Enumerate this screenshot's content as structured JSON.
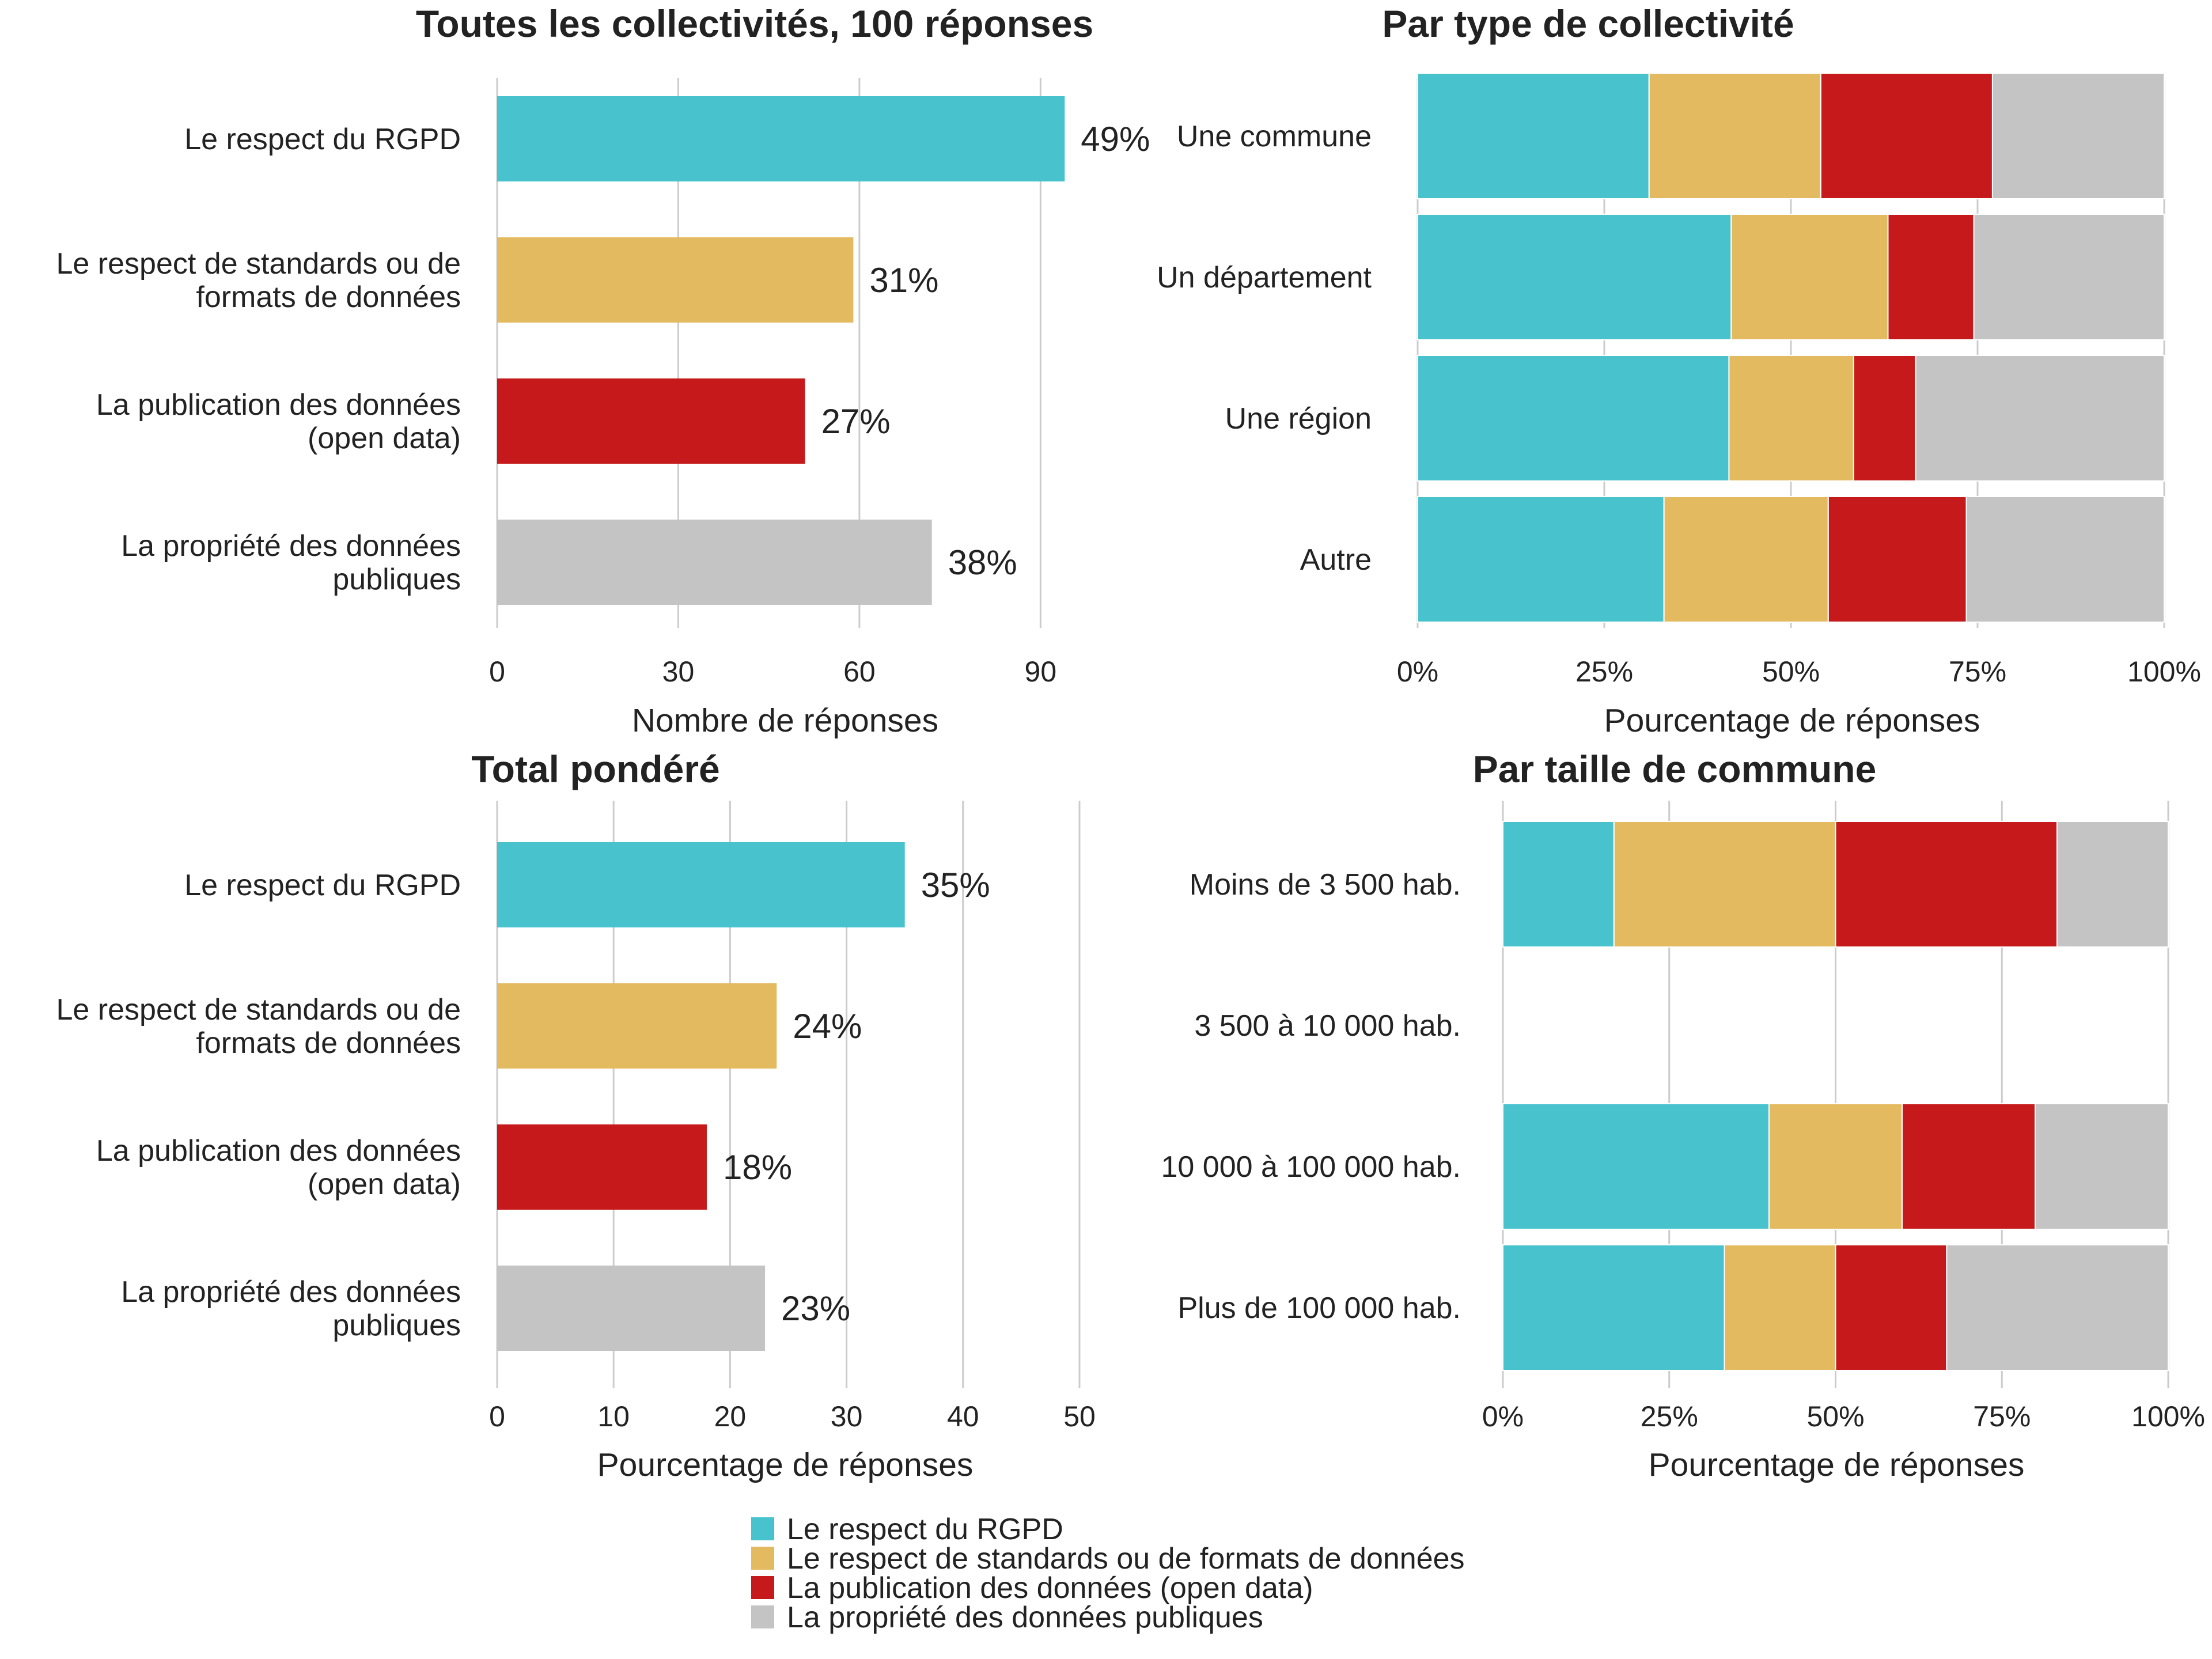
{
  "colors": {
    "rgpd": "#48C3CE",
    "standards": "#E3BA5F",
    "opendata": "#C5191B",
    "propriete": "#C4C4C4",
    "grid": "#CCCCCC"
  },
  "legend": [
    {
      "label": "Le respect du RGPD",
      "color": "#48C3CE"
    },
    {
      "label": "Le respect de standards ou de formats de données",
      "color": "#E3BA5F"
    },
    {
      "label": "La publication des données (open data)",
      "color": "#C5191B"
    },
    {
      "label": "La propriété des données publiques",
      "color": "#C4C4C4"
    }
  ],
  "chart_data": [
    {
      "type": "bar",
      "orientation": "horizontal",
      "title": "Toutes les collectivités, 100 réponses",
      "xlabel": "Nombre de réponses",
      "categories": [
        [
          "Le respect du RGPD"
        ],
        [
          "Le respect de standards ou de",
          "formats de données"
        ],
        [
          "La publication des données",
          "(open data)"
        ],
        [
          "La propriété des données",
          "publiques"
        ]
      ],
      "values": [
        94,
        59,
        51,
        72
      ],
      "value_labels": [
        "49%",
        "31%",
        "27%",
        "38%"
      ],
      "colors": [
        "#48C3CE",
        "#E3BA5F",
        "#C5191B",
        "#C4C4C4"
      ],
      "xlim": [
        0,
        110
      ],
      "xticks": [
        0,
        30,
        60,
        90
      ],
      "xtick_labels": [
        "0",
        "30",
        "60",
        "90"
      ],
      "grid": true
    },
    {
      "type": "bar",
      "orientation": "horizontal",
      "stacked": true,
      "title": "Par type de collectivité",
      "xlabel": "Pourcentage de réponses",
      "categories": [
        "Une commune",
        "Un département",
        "Une région",
        "Autre"
      ],
      "series": [
        {
          "name": "Le respect du RGPD",
          "color": "#48C3CE",
          "values": [
            31,
            42,
            41.7,
            33
          ]
        },
        {
          "name": "Le respect de standards ou de formats de données",
          "color": "#E3BA5F",
          "values": [
            23,
            21,
            16.7,
            22
          ]
        },
        {
          "name": "La publication des données (open data)",
          "color": "#C5191B",
          "values": [
            23,
            11.5,
            8.3,
            18.5
          ]
        },
        {
          "name": "La propriété des données publiques",
          "color": "#C4C4C4",
          "values": [
            23,
            25.5,
            33.3,
            26.5
          ]
        }
      ],
      "xlim": [
        0,
        100
      ],
      "xticks": [
        0,
        25,
        50,
        75,
        100
      ],
      "xtick_labels": [
        "0%",
        "25%",
        "50%",
        "75%",
        "100%"
      ],
      "grid": true
    },
    {
      "type": "bar",
      "orientation": "horizontal",
      "title": "Total pondéré",
      "xlabel": "Pourcentage de réponses",
      "categories": [
        [
          "Le respect du RGPD"
        ],
        [
          "Le respect de standards ou de",
          "formats de données"
        ],
        [
          "La publication des données",
          "(open data)"
        ],
        [
          "La propriété des données",
          "publiques"
        ]
      ],
      "values": [
        35,
        24,
        18,
        23
      ],
      "value_labels": [
        "35%",
        "24%",
        "18%",
        "23%"
      ],
      "colors": [
        "#48C3CE",
        "#E3BA5F",
        "#C5191B",
        "#C4C4C4"
      ],
      "xlim": [
        0,
        50
      ],
      "xticks": [
        0,
        10,
        20,
        30,
        40,
        50
      ],
      "xtick_labels": [
        "0",
        "10",
        "20",
        "30",
        "40",
        "50"
      ],
      "grid": true
    },
    {
      "type": "bar",
      "orientation": "horizontal",
      "stacked": true,
      "title": "Par taille de commune",
      "xlabel": "Pourcentage de réponses",
      "categories": [
        "Moins de 3 500 hab.",
        "3 500 à 10 000 hab.",
        "10 000 à 100 000 hab.",
        "Plus de 100 000 hab."
      ],
      "series": [
        {
          "name": "Le respect du RGPD",
          "color": "#48C3CE",
          "values": [
            16.7,
            0,
            40,
            33.3
          ]
        },
        {
          "name": "Le respect de standards ou de formats de données",
          "color": "#E3BA5F",
          "values": [
            33.3,
            0,
            20,
            16.7
          ]
        },
        {
          "name": "La publication des données (open data)",
          "color": "#C5191B",
          "values": [
            33.3,
            0,
            20,
            16.7
          ]
        },
        {
          "name": "La propriété des données publiques",
          "color": "#C4C4C4",
          "values": [
            16.7,
            0,
            20,
            33.3
          ]
        }
      ],
      "xlim": [
        0,
        100
      ],
      "xticks": [
        0,
        25,
        50,
        75,
        100
      ],
      "xtick_labels": [
        "0%",
        "25%",
        "50%",
        "75%",
        "100%"
      ],
      "grid": true
    }
  ]
}
